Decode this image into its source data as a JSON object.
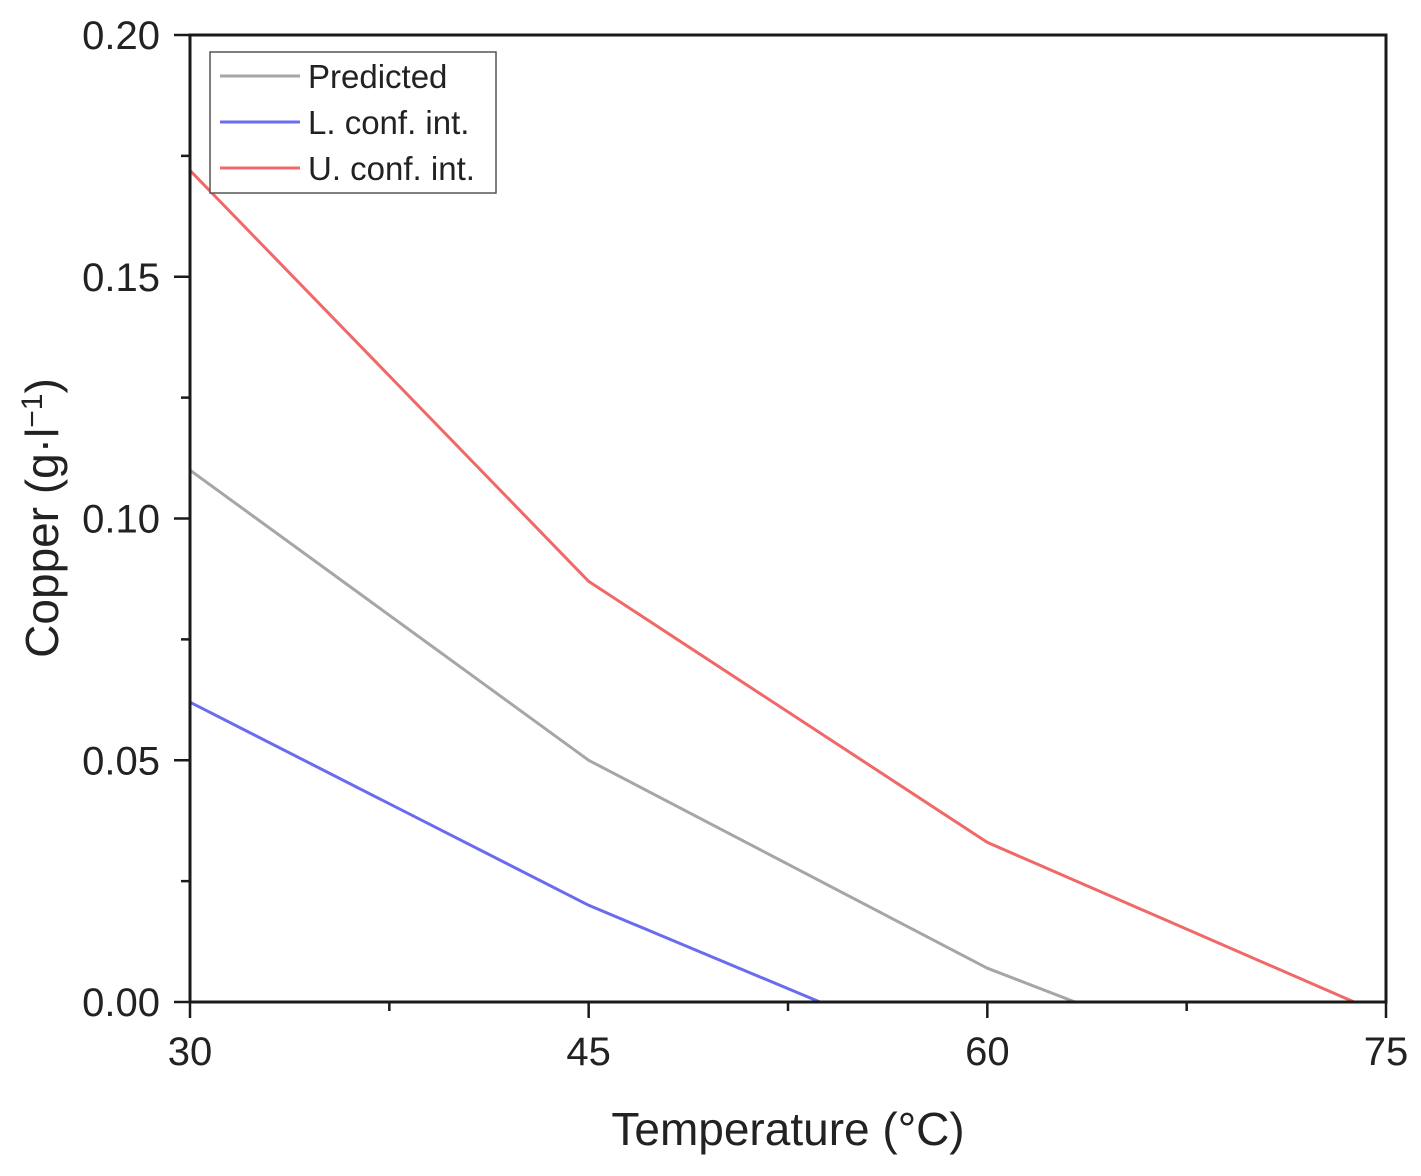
{
  "chart_data": {
    "type": "line",
    "title": "",
    "xlabel": "Temperature (°C)",
    "ylabel_main": "Copper (g·l",
    "ylabel_sup": "−1",
    "ylabel_close": ")",
    "xlim": [
      30,
      75
    ],
    "ylim": [
      0,
      0.2
    ],
    "xticks": [
      30,
      45,
      60,
      75
    ],
    "xtick_labels": [
      "30",
      "45",
      "60",
      "75"
    ],
    "yticks": [
      0,
      0.05,
      0.1,
      0.15,
      0.2
    ],
    "ytick_labels": [
      "0.00",
      "0.05",
      "0.10",
      "0.15",
      "0.20"
    ],
    "grid": false,
    "legend_position": "top-left",
    "series": [
      {
        "name": "Predicted",
        "color": "#a6a6a6",
        "x": [
          30,
          45,
          60,
          63.3
        ],
        "y": [
          0.11,
          0.05,
          0.007,
          0
        ]
      },
      {
        "name": "L. conf. int.",
        "color": "#6b6bf0",
        "x": [
          30,
          45,
          53.7
        ],
        "y": [
          0.062,
          0.02,
          0
        ]
      },
      {
        "name": "U. conf. int.",
        "color": "#f06868",
        "x": [
          30,
          45,
          60,
          73.8
        ],
        "y": [
          0.172,
          0.087,
          0.033,
          0
        ]
      }
    ]
  }
}
